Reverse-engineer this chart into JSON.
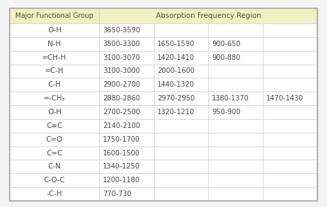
{
  "header_col1": "Major Functional Group",
  "header_col2": "Absorption Frequency Region",
  "header_bg": "#f0f0c0",
  "row_bg": "#ffffff",
  "border_color": "#cccccc",
  "outer_border_color": "#aaaaaa",
  "text_color": "#444444",
  "header_text_color": "#555533",
  "rows": [
    {
      "group": "O-H",
      "vals": [
        "3650-3590",
        "",
        "",
        ""
      ]
    },
    {
      "group": "N-H",
      "vals": [
        "3500-3300",
        "1650-1590",
        "900-650",
        ""
      ]
    },
    {
      "group": "=CH-H",
      "vals": [
        "3100-3070",
        "1420-1410",
        "900-880",
        ""
      ]
    },
    {
      "group": "=C-H",
      "vals": [
        "3100-3000",
        "2000-1600",
        "",
        ""
      ]
    },
    {
      "group": "C-H",
      "vals": [
        "2900-2700",
        "1440-1320",
        "",
        ""
      ]
    },
    {
      "group": "=-CH₃",
      "vals": [
        "2880-2860",
        "2970-2950",
        "1380-1370",
        "1470-1430"
      ]
    },
    {
      "group": "O-H",
      "vals": [
        "2700-2500",
        "1320-1210",
        "950-900",
        ""
      ]
    },
    {
      "group": "C≡C",
      "vals": [
        "2140-2100",
        "",
        "",
        ""
      ]
    },
    {
      "group": "C=O",
      "vals": [
        "1750-1700",
        "",
        "",
        ""
      ]
    },
    {
      "group": "C=C",
      "vals": [
        "1600-1500",
        "",
        "",
        ""
      ]
    },
    {
      "group": "C-N",
      "vals": [
        "1340-1250",
        "",
        "",
        ""
      ]
    },
    {
      "group": "C-O-C",
      "vals": [
        "1200-1180",
        "",
        "",
        ""
      ]
    },
    {
      "group": "-C-H",
      "vals": [
        "770-730",
        "",
        "",
        ""
      ]
    }
  ],
  "figsize": [
    4.74,
    3.01
  ],
  "dpi": 100,
  "fig_bg": "#f4f4f4",
  "table_bg": "#ffffff"
}
